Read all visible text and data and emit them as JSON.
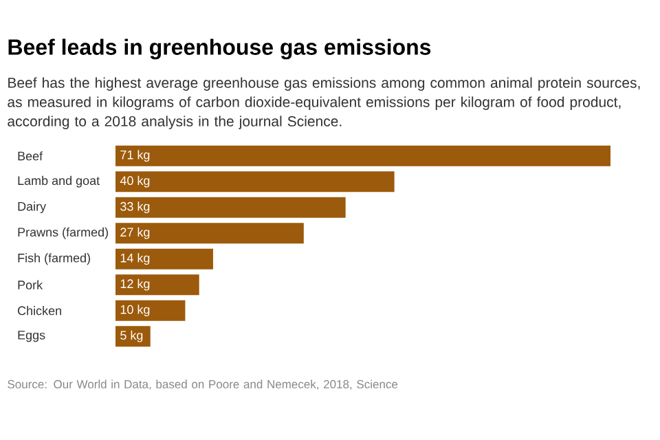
{
  "chart_data": {
    "type": "bar",
    "orientation": "horizontal",
    "title": "Beef leads in greenhouse gas emissions",
    "subtitle": "Beef has the highest average greenhouse gas emissions among common animal protein sources, as measured in kilograms of carbon dioxide-equivalent emissions per kilogram of food product, according to a 2018 analysis in the journal Science.",
    "categories": [
      "Beef",
      "Lamb and goat",
      "Dairy",
      "Prawns (farmed)",
      "Fish (farmed)",
      "Pork",
      "Chicken",
      "Eggs"
    ],
    "values": [
      71,
      40,
      33,
      27,
      14,
      12,
      10,
      5
    ],
    "value_labels": [
      "71 kg",
      "40 kg",
      "33 kg",
      "27 kg",
      "14 kg",
      "12 kg",
      "10 kg",
      "5 kg"
    ],
    "color": "#9c5a0c",
    "annotations": [
      "Source: Our World in Data, based on Poore and Nemecek, 2018, Science"
    ]
  }
}
